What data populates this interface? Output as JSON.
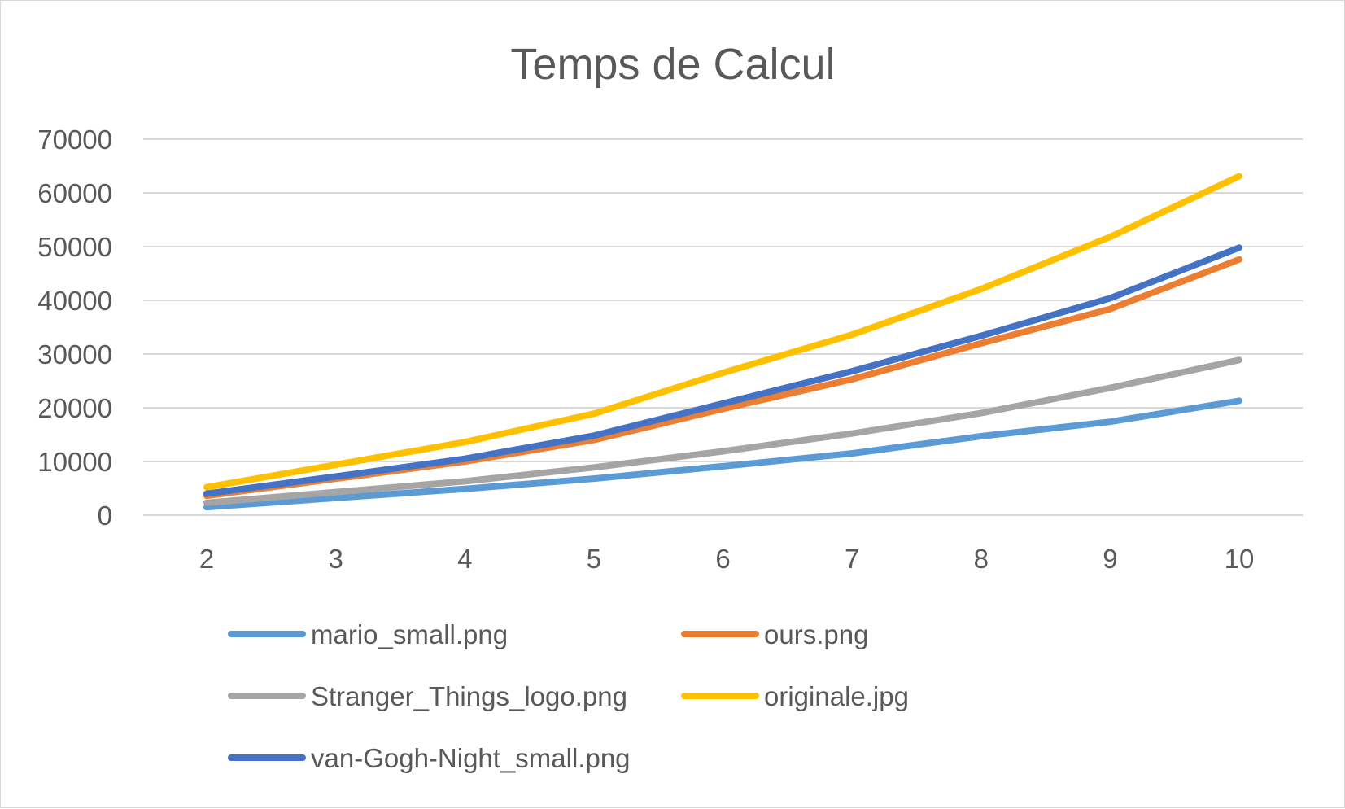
{
  "chart_data": {
    "type": "line",
    "title": "Temps de Calcul",
    "xlabel": "",
    "ylabel": "",
    "categories": [
      "2",
      "3",
      "4",
      "5",
      "6",
      "7",
      "8",
      "9",
      "10"
    ],
    "ylim": [
      0,
      70000
    ],
    "yticks": [
      "0",
      "10000",
      "20000",
      "30000",
      "40000",
      "50000",
      "60000",
      "70000"
    ],
    "grid": true,
    "legend_position": "bottom",
    "series": [
      {
        "name": "mario_small.png",
        "color": "#5b9bd5",
        "values": [
          1500,
          3200,
          4900,
          6800,
          9100,
          11500,
          14700,
          17400,
          21300
        ]
      },
      {
        "name": "ours.png",
        "color": "#ed7d31",
        "values": [
          3600,
          6800,
          10000,
          14000,
          19800,
          25300,
          32000,
          38400,
          47600
        ]
      },
      {
        "name": "Stranger_Things_logo.png",
        "color": "#a5a5a5",
        "values": [
          2300,
          4300,
          6300,
          8900,
          11900,
          15200,
          19000,
          23700,
          28900
        ]
      },
      {
        "name": "originale.jpg",
        "color": "#ffc000",
        "values": [
          5200,
          9400,
          13600,
          18900,
          26500,
          33600,
          42100,
          51800,
          63100
        ]
      },
      {
        "name": "van-Gogh-Night_small.png",
        "color": "#4472c4",
        "values": [
          4000,
          7200,
          10500,
          14800,
          20800,
          26800,
          33400,
          40400,
          49800
        ]
      }
    ]
  }
}
